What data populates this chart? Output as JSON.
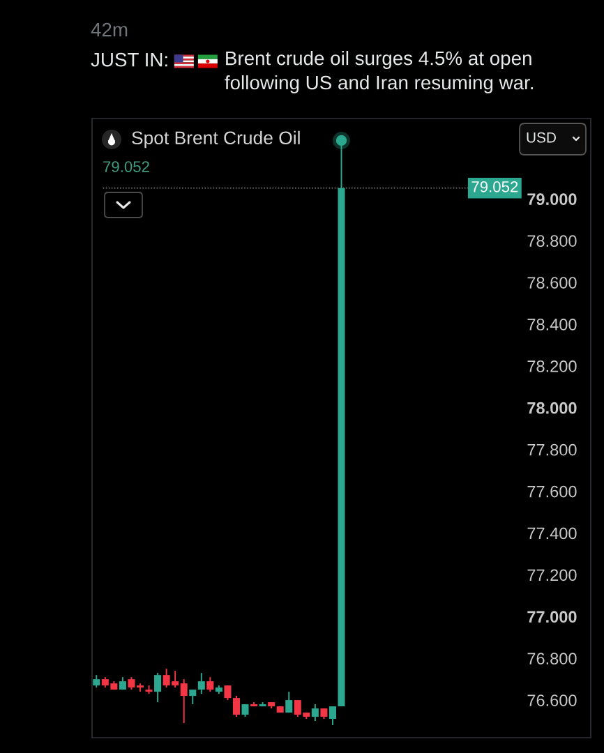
{
  "chart_data": {
    "type": "candlestick",
    "title": "Brent crude oil surges 4.5% at open following US and Iran resuming war.",
    "subtitle": "Spot Brent Crude Oil",
    "categories": [
      null,
      null,
      null,
      null,
      null,
      null,
      null,
      null,
      null,
      null,
      null,
      null,
      null,
      null,
      null,
      null,
      null,
      null,
      null,
      null,
      null,
      null,
      null,
      null,
      null,
      null,
      null,
      null,
      null,
      null,
      null,
      null,
      null,
      null,
      null,
      null,
      null,
      null,
      null,
      null,
      null,
      null,
      null,
      null,
      null,
      null,
      null,
      null,
      null,
      null,
      null,
      null,
      null,
      null,
      null,
      null,
      null
    ],
    "ohlc": [
      [
        76.67,
        76.72,
        76.66,
        76.7
      ],
      [
        76.7,
        76.71,
        76.66,
        76.67
      ],
      [
        76.68,
        76.69,
        76.65,
        76.65
      ],
      [
        76.65,
        76.71,
        76.65,
        76.69
      ],
      [
        76.7,
        76.71,
        76.65,
        76.66
      ],
      [
        76.67,
        76.68,
        76.64,
        76.66
      ],
      [
        76.65,
        76.67,
        76.63,
        76.64
      ],
      [
        76.64,
        76.73,
        76.59,
        76.72
      ],
      [
        76.72,
        76.75,
        76.66,
        76.67
      ],
      [
        76.69,
        76.74,
        76.66,
        76.67
      ],
      [
        76.68,
        76.7,
        76.49,
        76.62
      ],
      [
        76.62,
        76.65,
        76.58,
        76.65
      ],
      [
        76.65,
        76.73,
        76.63,
        76.69
      ],
      [
        76.69,
        76.71,
        76.64,
        76.65
      ],
      [
        76.64,
        76.67,
        76.63,
        76.66
      ],
      [
        76.67,
        76.67,
        76.6,
        76.61
      ],
      [
        76.61,
        76.62,
        76.52,
        76.53
      ],
      [
        76.53,
        76.58,
        76.52,
        76.58
      ],
      [
        76.58,
        76.59,
        76.57,
        76.57
      ],
      [
        76.57,
        76.59,
        76.57,
        76.58
      ],
      [
        76.59,
        76.59,
        76.56,
        76.57
      ],
      [
        76.57,
        76.57,
        76.54,
        76.54
      ],
      [
        76.54,
        76.64,
        76.54,
        76.6
      ],
      [
        76.6,
        76.6,
        76.52,
        76.53
      ],
      [
        76.54,
        76.54,
        76.51,
        76.52
      ],
      [
        76.52,
        76.58,
        76.5,
        76.56
      ],
      [
        76.56,
        76.56,
        76.51,
        76.52
      ],
      [
        76.51,
        76.57,
        76.48,
        76.57
      ],
      [
        76.57,
        79.28,
        76.57,
        79.052
      ],
      null,
      null,
      null,
      null,
      null,
      null,
      null,
      null,
      null,
      null,
      null,
      null,
      null,
      null,
      null,
      null,
      null,
      null,
      null,
      null,
      null,
      null,
      null,
      null,
      null,
      null,
      null,
      null
    ],
    "colors": [
      "#2ba88f",
      "#f23645",
      "#f23645",
      "#2ba88f",
      "#f23645",
      "#f23645",
      "#f23645",
      "#2ba88f",
      "#f23645",
      "#f23645",
      "#f23645",
      "#2ba88f",
      "#2ba88f",
      "#f23645",
      "#2ba88f",
      "#f23645",
      "#f23645",
      "#2ba88f",
      "#f23645",
      "#2ba88f",
      "#f23645",
      "#f23645",
      "#2ba88f",
      "#f23645",
      "#f23645",
      "#2ba88f",
      "#f23645",
      "#2ba88f",
      "#2ba88f",
      null,
      null,
      null,
      null,
      null,
      null,
      null,
      null,
      null,
      null,
      null,
      null,
      null,
      null,
      null,
      null,
      null,
      null,
      null,
      null,
      null,
      null,
      null,
      null,
      null,
      null,
      null,
      null
    ],
    "series": [
      {
        "type": "scatter",
        "color": "#2ba88f",
        "values": [
          null,
          null,
          null,
          null,
          null,
          null,
          null,
          null,
          null,
          null,
          null,
          null,
          null,
          null,
          null,
          null,
          null,
          null,
          null,
          null,
          null,
          null,
          null,
          null,
          null,
          null,
          null,
          null,
          79.28,
          null,
          null,
          null,
          null,
          null,
          null,
          null,
          null,
          null,
          null,
          null,
          null,
          null,
          null,
          null,
          null,
          null,
          null,
          null,
          null,
          null,
          null,
          null,
          null,
          null,
          null,
          null,
          null
        ]
      }
    ],
    "marker": "circle",
    "ylim": [
      76.42,
      79.385
    ],
    "yticks": [
      {
        "value": 76.6,
        "label": "76.600"
      },
      {
        "value": 76.8,
        "label": "76.800"
      },
      {
        "value": 77.0,
        "label": "77.000"
      },
      {
        "value": 77.2,
        "label": "77.200"
      },
      {
        "value": 77.4,
        "label": "77.400"
      },
      {
        "value": 77.6,
        "label": "77.600"
      },
      {
        "value": 77.8,
        "label": "77.800"
      },
      {
        "value": 78.0,
        "label": "78.000"
      },
      {
        "value": 78.2,
        "label": "78.200"
      },
      {
        "value": 78.4,
        "label": "78.400"
      },
      {
        "value": 78.6,
        "label": "78.600"
      },
      {
        "value": 78.8,
        "label": "78.800"
      },
      {
        "value": 79.0,
        "label": "79.000"
      }
    ],
    "tick_labels": "y",
    "ref_lines": [
      {
        "axis": "y",
        "value": 79.052,
        "label": "79.052",
        "color": "#8a8a8a",
        "line_style": "dotted"
      }
    ],
    "annotations": [
      "42m",
      "JUST IN:",
      "79.052",
      "USD"
    ]
  }
}
